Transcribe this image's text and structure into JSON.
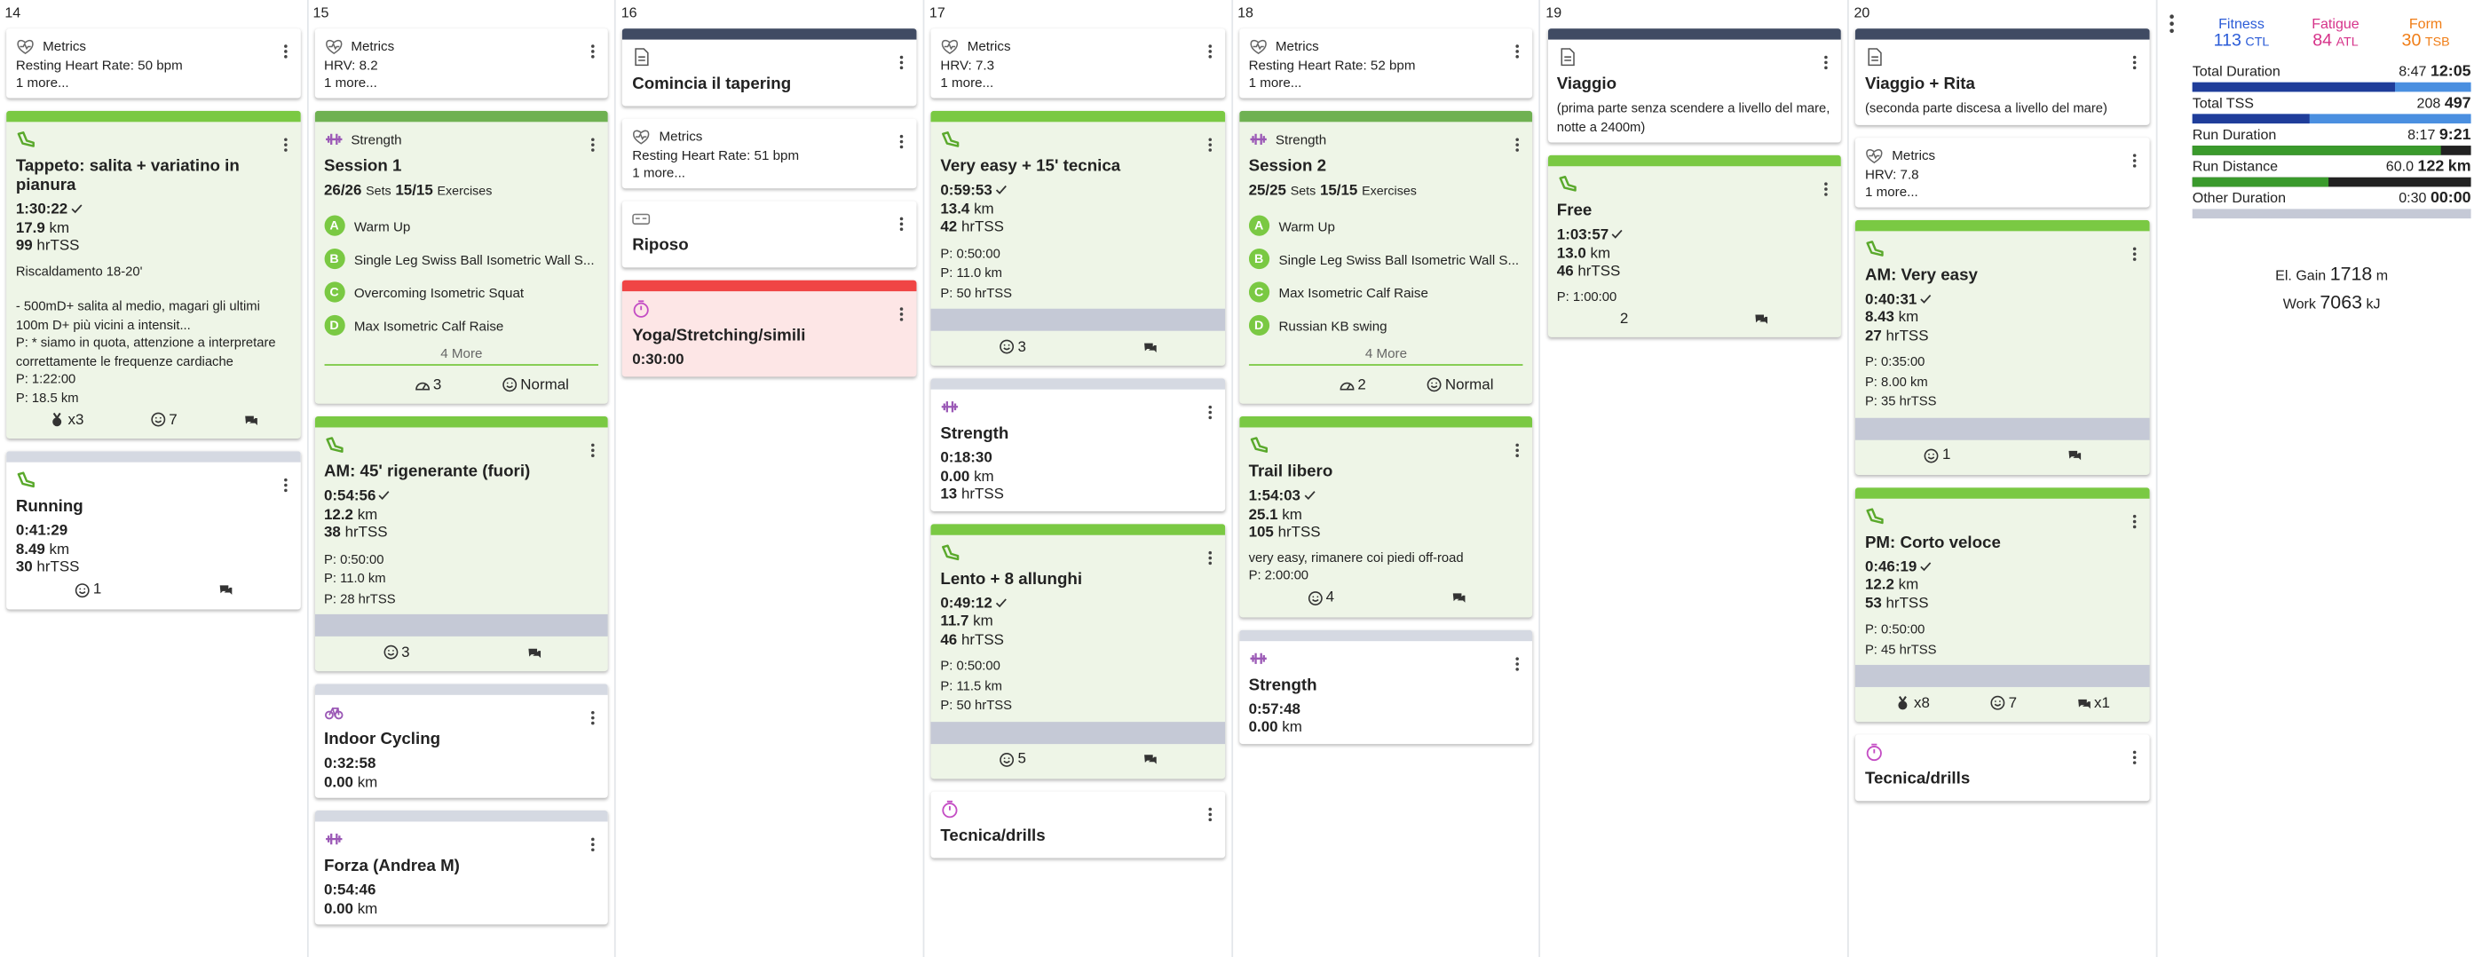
{
  "days": [
    {
      "label": "14",
      "cards": [
        {
          "icon": "metrics",
          "head": "Metrics",
          "lines": [
            "Resting Heart Rate: 50 bpm",
            "1 more..."
          ]
        },
        {
          "icon": "run",
          "bar": "#7ac943",
          "bg": "#eef5e7",
          "title": "Tappeto: salita + variatino in pianura",
          "duration": "1:30:22",
          "completed": true,
          "stats": [
            {
              "value": "17.9",
              "unit": "km"
            },
            {
              "value": "99",
              "unit": "hrTSS"
            }
          ],
          "notes": [
            "Riscaldamento 18-20'",
            "",
            "- 500mD+ salita al medio, magari gli ultimi 100m D+ più vicini a intensit...",
            "P: * siamo in quota, attenzione a interpretare correttamente le frequenze cardiache",
            "P: 1:22:00",
            "P: 18.5 km"
          ],
          "footer": [
            {
              "icon": "medal",
              "text": "x3"
            },
            {
              "icon": "smile",
              "text": "7"
            },
            {
              "icon": "chat"
            }
          ]
        },
        {
          "icon": "run",
          "bar": "#d5d9e2",
          "title": "Running",
          "duration": "0:41:29",
          "stats": [
            {
              "value": "8.49",
              "unit": "km"
            },
            {
              "value": "30",
              "unit": "hrTSS"
            }
          ],
          "footer": [
            {
              "icon": "smile",
              "text": "1"
            },
            {
              "icon": "chat"
            }
          ]
        }
      ]
    },
    {
      "label": "15",
      "cards": [
        {
          "icon": "metrics",
          "head": "Metrics",
          "lines": [
            "HRV: 8.2",
            "1 more..."
          ]
        },
        {
          "icon": "strength",
          "bar": "#6fb152",
          "bg": "#eef5e7",
          "head": "Strength",
          "title": "Session 1",
          "sets": [
            {
              "value": "26/26",
              "unit": "Sets"
            },
            {
              "value": "15/15",
              "unit": "Exercises"
            }
          ],
          "exercises": [
            {
              "letter": "A",
              "name": "Warm Up"
            },
            {
              "letter": "B",
              "name": "Single Leg Swiss Ball Isometric Wall S..."
            },
            {
              "letter": "C",
              "name": "Overcoming Isometric Squat"
            },
            {
              "letter": "D",
              "name": "Max Isometric Calf Raise"
            }
          ],
          "more": "4 More",
          "footer": [
            {
              "text": ""
            },
            {
              "icon": "gauge",
              "text": "3"
            },
            {
              "icon": "smile",
              "text": "Normal"
            }
          ]
        },
        {
          "icon": "run",
          "bar": "#7ac943",
          "bg": "#eef5e7",
          "title": "AM: 45' rigenerante (fuori)",
          "duration": "0:54:56",
          "completed": true,
          "stats": [
            {
              "value": "12.2",
              "unit": "km"
            },
            {
              "value": "38",
              "unit": "hrTSS"
            }
          ],
          "plan": [
            "P: 0:50:00",
            "P: 11.0 km",
            "P: 28 hrTSS"
          ],
          "compliance": true,
          "footer": [
            {
              "icon": "smile",
              "text": "3"
            },
            {
              "icon": "chat"
            }
          ]
        },
        {
          "icon": "bike",
          "bar": "#d5d9e2",
          "title": "Indoor Cycling",
          "duration": "0:32:58",
          "stats": [
            {
              "value": "0.00",
              "unit": "km"
            }
          ]
        },
        {
          "icon": "strength",
          "bar": "#d5d9e2",
          "title": "Forza (Andrea M)",
          "duration": "0:54:46",
          "stats": [
            {
              "value": "0.00",
              "unit": "km"
            }
          ]
        }
      ]
    },
    {
      "label": "16",
      "cards": [
        {
          "icon": "note",
          "bar": "#404b63",
          "title": "Comincia il tapering"
        },
        {
          "icon": "metrics",
          "head": "Metrics",
          "lines": [
            "Resting Heart Rate: 51 bpm",
            "1 more..."
          ]
        },
        {
          "icon": "rest",
          "title": "Riposo"
        },
        {
          "icon": "timer",
          "bar": "#f04545",
          "bg": "#fde6e6",
          "title": "Yoga/Stretching/simili",
          "duration": "0:30:00"
        }
      ]
    },
    {
      "label": "17",
      "cards": [
        {
          "icon": "metrics",
          "head": "Metrics",
          "lines": [
            "HRV: 7.3",
            "1 more..."
          ]
        },
        {
          "icon": "run",
          "bar": "#7ac943",
          "bg": "#eef5e7",
          "title": "Very easy + 15' tecnica",
          "duration": "0:59:53",
          "completed": true,
          "stats": [
            {
              "value": "13.4",
              "unit": "km"
            },
            {
              "value": "42",
              "unit": "hrTSS"
            }
          ],
          "plan": [
            "P: 0:50:00",
            "P: 11.0 km",
            "P: 50 hrTSS"
          ],
          "compliance": true,
          "footer": [
            {
              "icon": "smile",
              "text": "3"
            },
            {
              "icon": "chat"
            }
          ]
        },
        {
          "icon": "strength",
          "bar": "#d5d9e2",
          "title": "Strength",
          "duration": "0:18:30",
          "stats": [
            {
              "value": "0.00",
              "unit": "km"
            },
            {
              "value": "13",
              "unit": "hrTSS"
            }
          ]
        },
        {
          "icon": "run",
          "bar": "#7ac943",
          "bg": "#eef5e7",
          "title": "Lento + 8 allunghi",
          "duration": "0:49:12",
          "completed": true,
          "stats": [
            {
              "value": "11.7",
              "unit": "km"
            },
            {
              "value": "46",
              "unit": "hrTSS"
            }
          ],
          "plan": [
            "P: 0:50:00",
            "P: 11.5 km",
            "P: 50 hrTSS"
          ],
          "compliance": true,
          "footer": [
            {
              "icon": "smile",
              "text": "5"
            },
            {
              "icon": "chat"
            }
          ]
        },
        {
          "icon": "timer",
          "title": "Tecnica/drills"
        }
      ]
    },
    {
      "label": "18",
      "cards": [
        {
          "icon": "metrics",
          "head": "Metrics",
          "lines": [
            "Resting Heart Rate: 52 bpm",
            "1 more..."
          ]
        },
        {
          "icon": "strength",
          "bar": "#6fb152",
          "bg": "#eef5e7",
          "head": "Strength",
          "title": "Session 2",
          "sets": [
            {
              "value": "25/25",
              "unit": "Sets"
            },
            {
              "value": "15/15",
              "unit": "Exercises"
            }
          ],
          "exercises": [
            {
              "letter": "A",
              "name": "Warm Up"
            },
            {
              "letter": "B",
              "name": "Single Leg Swiss Ball Isometric Wall S..."
            },
            {
              "letter": "C",
              "name": "Max Isometric Calf Raise"
            },
            {
              "letter": "D",
              "name": "Russian KB swing"
            }
          ],
          "more": "4 More",
          "footer": [
            {
              "text": ""
            },
            {
              "icon": "gauge",
              "text": "2"
            },
            {
              "icon": "smile",
              "text": "Normal"
            }
          ]
        },
        {
          "icon": "run",
          "bar": "#7ac943",
          "bg": "#eef5e7",
          "title": "Trail libero",
          "duration": "1:54:03",
          "completed": true,
          "stats": [
            {
              "value": "25.1",
              "unit": "km"
            },
            {
              "value": "105",
              "unit": "hrTSS"
            }
          ],
          "notes": [
            "very easy, rimanere coi piedi off-road",
            "P: 2:00:00"
          ],
          "footer": [
            {
              "icon": "smile",
              "text": "4"
            },
            {
              "icon": "chat"
            }
          ]
        },
        {
          "icon": "strength",
          "bar": "#d5d9e2",
          "title": "Strength",
          "duration": "0:57:48",
          "stats": [
            {
              "value": "0.00",
              "unit": "km"
            }
          ]
        }
      ]
    },
    {
      "label": "19",
      "cards": [
        {
          "icon": "note",
          "bar": "#404b63",
          "title": "Viaggio",
          "notes": [
            "(prima parte senza scendere a livello del mare, notte a 2400m)"
          ]
        },
        {
          "icon": "run",
          "bar": "#7ac943",
          "bg": "#eef5e7",
          "title": "Free",
          "duration": "1:03:57",
          "completed": true,
          "stats": [
            {
              "value": "13.0",
              "unit": "km"
            },
            {
              "value": "46",
              "unit": "hrTSS"
            }
          ],
          "notes": [
            "P: 1:00:00"
          ],
          "footer": [
            {
              "text": "2"
            },
            {
              "icon": "chat"
            }
          ]
        }
      ]
    },
    {
      "label": "20",
      "cards": [
        {
          "icon": "note",
          "bar": "#404b63",
          "title": "Viaggio + Rita",
          "notes": [
            "(seconda parte discesa a livello del mare)"
          ]
        },
        {
          "icon": "metrics",
          "head": "Metrics",
          "lines": [
            "HRV: 7.8",
            "1 more..."
          ]
        },
        {
          "icon": "run",
          "bar": "#7ac943",
          "bg": "#eef5e7",
          "title": "AM: Very easy",
          "duration": "0:40:31",
          "completed": true,
          "stats": [
            {
              "value": "8.43",
              "unit": "km"
            },
            {
              "value": "27",
              "unit": "hrTSS"
            }
          ],
          "plan": [
            "P: 0:35:00",
            "P: 8.00 km",
            "P: 35 hrTSS"
          ],
          "compliance": true,
          "footer": [
            {
              "icon": "smile",
              "text": "1"
            },
            {
              "icon": "chat"
            }
          ]
        },
        {
          "icon": "run",
          "bar": "#7ac943",
          "bg": "#eef5e7",
          "title": "PM: Corto veloce",
          "duration": "0:46:19",
          "completed": true,
          "stats": [
            {
              "value": "12.2",
              "unit": "km"
            },
            {
              "value": "53",
              "unit": "hrTSS"
            }
          ],
          "plan": [
            "P: 0:50:00",
            "P: 45 hrTSS"
          ],
          "compliance": true,
          "footer": [
            {
              "icon": "medal",
              "text": "x8"
            },
            {
              "icon": "smile",
              "text": "7"
            },
            {
              "icon": "chat",
              "text": "x1"
            }
          ]
        },
        {
          "icon": "timer",
          "title": "Tecnica/drills"
        }
      ]
    }
  ],
  "summary": {
    "legend": [
      {
        "name": "Fitness",
        "value": "113",
        "unit": "CTL",
        "color": "#2a5bd7"
      },
      {
        "name": "Fatigue",
        "value": "84",
        "unit": "ATL",
        "color": "#d6338a"
      },
      {
        "name": "Form",
        "value": "30",
        "unit": "TSB",
        "color": "#f07d16"
      }
    ],
    "rows": [
      {
        "label": "Total Duration",
        "actual": "8:47",
        "planned": "12:05"
      },
      {
        "label": "Total TSS",
        "actual": "208",
        "planned": "497"
      },
      {
        "label": "Run Duration",
        "actual": "8:17",
        "planned": "9:21"
      },
      {
        "label": "Run Distance",
        "actual": "60.0",
        "planned": "122",
        "unit": "km"
      },
      {
        "label": "Other Duration",
        "actual": "0:30",
        "planned": "00:00"
      }
    ],
    "extras": [
      {
        "label": "El. Gain",
        "value": "1718",
        "unit": "m"
      },
      {
        "label": "Work",
        "value": "7063",
        "unit": "kJ"
      }
    ]
  }
}
